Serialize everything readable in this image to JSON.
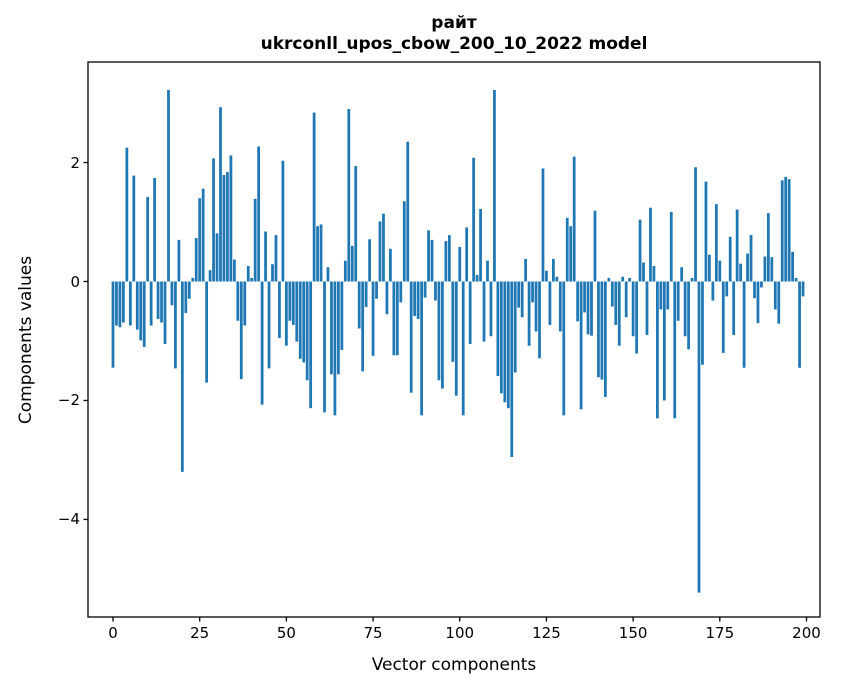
{
  "chart_data": {
    "type": "bar",
    "title": "райт",
    "subtitle": "ukrconll_upos_cbow_200_10_2022 model",
    "xlabel": "Vector components",
    "ylabel": "Components values",
    "x_ticks": [
      0,
      25,
      50,
      75,
      100,
      125,
      150,
      175,
      200
    ],
    "y_ticks": [
      2,
      0,
      -2,
      -4
    ],
    "y_tick_labels": [
      "2",
      "0",
      "−2",
      "−4"
    ],
    "ylim": [
      -5.64,
      3.69
    ],
    "n_components": 200,
    "bar_color": "#1f77b4",
    "axis_color": "#000000",
    "legend": "none",
    "grid": false,
    "values": [
      -1.45,
      -0.74,
      -0.77,
      -0.69,
      2.25,
      -0.74,
      1.78,
      -0.81,
      -0.99,
      -1.1,
      1.42,
      -0.74,
      1.74,
      -0.63,
      -0.69,
      -1.05,
      3.22,
      -0.4,
      -1.46,
      0.7,
      -3.2,
      -0.53,
      -0.29,
      0.06,
      0.73,
      1.4,
      1.56,
      -1.7,
      0.19,
      2.07,
      0.81,
      2.93,
      1.79,
      1.84,
      2.12,
      0.37,
      -0.66,
      -1.64,
      -0.74,
      0.26,
      0.06,
      1.39,
      2.27,
      -2.07,
      0.84,
      -1.46,
      0.29,
      0.78,
      -0.95,
      2.03,
      -1.08,
      -0.66,
      -0.73,
      -1.01,
      -1.3,
      -1.36,
      -1.66,
      -2.13,
      2.84,
      0.93,
      0.96,
      -2.2,
      0.24,
      -1.56,
      -2.25,
      -1.56,
      -1.15,
      0.35,
      2.9,
      0.6,
      1.94,
      -0.79,
      -1.51,
      -0.43,
      0.71,
      -1.25,
      -0.29,
      1.01,
      1.14,
      -0.55,
      0.55,
      -1.24,
      -1.24,
      -0.35,
      1.35,
      2.35,
      -1.87,
      -0.58,
      -0.63,
      -2.25,
      -0.27,
      0.86,
      0.7,
      -0.32,
      -1.66,
      -1.8,
      0.68,
      0.78,
      -1.35,
      -1.92,
      0.58,
      -2.25,
      0.91,
      -1.05,
      2.08,
      0.11,
      1.22,
      -1.01,
      0.35,
      -0.92,
      3.22,
      -1.59,
      -1.88,
      -2.03,
      -2.13,
      -2.95,
      -1.53,
      -0.44,
      -0.6,
      0.38,
      -1.08,
      -0.35,
      -0.84,
      -1.29,
      1.9,
      0.18,
      -0.73,
      0.38,
      0.08,
      -0.84,
      -2.25,
      1.07,
      0.93,
      2.1,
      -0.67,
      -2.15,
      -0.52,
      -0.89,
      -0.91,
      1.19,
      -1.61,
      -1.65,
      -1.94,
      0.06,
      -0.42,
      -0.73,
      -1.08,
      0.08,
      -0.6,
      0.06,
      -0.92,
      -1.21,
      1.04,
      0.32,
      -0.9,
      1.24,
      0.26,
      -2.3,
      -0.47,
      -2.0,
      -0.47,
      1.17,
      -2.3,
      -0.66,
      0.24,
      -0.92,
      -1.14,
      0.06,
      1.92,
      -5.23,
      -1.4,
      1.68,
      0.45,
      -0.32,
      1.3,
      0.35,
      -1.2,
      -0.25,
      0.75,
      -0.9,
      1.21,
      0.3,
      -1.45,
      0.47,
      0.78,
      -0.28,
      -0.7,
      -0.1,
      0.42,
      1.15,
      0.41,
      -0.47,
      -0.71,
      1.7,
      1.76,
      1.72,
      0.5,
      0.06,
      -1.45,
      -0.25
    ]
  }
}
